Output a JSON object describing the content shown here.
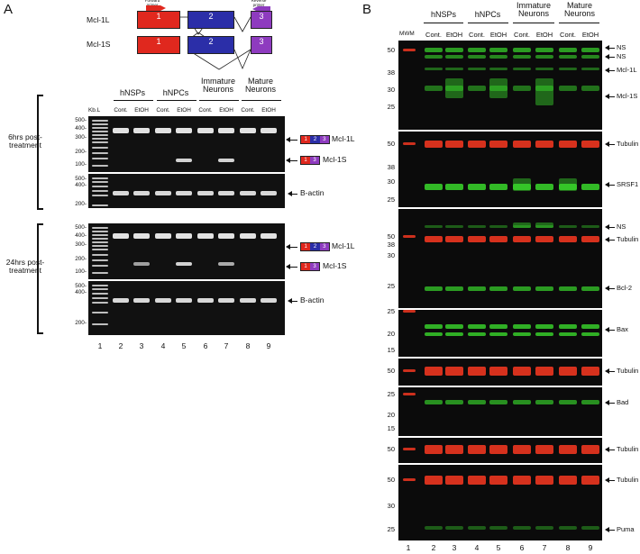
{
  "panel_a": {
    "letter": "A",
    "gene_diagram": {
      "isoforms": [
        {
          "label": "Mcl-1L",
          "exons": [
            "1",
            "2",
            "3"
          ]
        },
        {
          "label": "Mcl-1S",
          "exons": [
            "1",
            "2",
            "3"
          ]
        }
      ],
      "forward_primer": "Forward primer",
      "reverse_primer": "Reverse primer"
    },
    "groups": [
      "hNSPs",
      "hNPCs",
      "Immature Neurons",
      "Mature Neurons"
    ],
    "conditions": [
      "Cont.",
      "EtOH"
    ],
    "ladder_label": "Kb.L",
    "timepoints": [
      {
        "label": "6hrs post-treatment",
        "gel_ticks": [
          "500-",
          "400-",
          "300-",
          "200-",
          "100-"
        ],
        "actin_ticks": [
          "500-",
          "400-",
          "200-"
        ]
      },
      {
        "label": "24hrs post-treatment",
        "gel_ticks": [
          "500-",
          "400-",
          "300-",
          "200-",
          "100-"
        ],
        "actin_ticks": [
          "500-",
          "400-",
          "200-"
        ]
      }
    ],
    "band_labels": {
      "long": "Mcl-1L",
      "short": "Mcl-1S",
      "actin": "B-actin"
    },
    "mini_exons": {
      "long": [
        "1",
        "2",
        "3"
      ],
      "short": [
        "1",
        "3"
      ]
    },
    "lanes": [
      "1",
      "2",
      "3",
      "4",
      "5",
      "6",
      "7",
      "8",
      "9"
    ]
  },
  "panel_b": {
    "letter": "B",
    "groups": [
      "hNSPs",
      "hNPCs",
      "Immature Neurons",
      "Mature Neurons"
    ],
    "conditions": [
      "Cont.",
      "EtOH"
    ],
    "marker_label": "MWM",
    "lanes": [
      "1",
      "2",
      "3",
      "4",
      "5",
      "6",
      "7",
      "8",
      "9"
    ],
    "strips": [
      {
        "ticks": [
          "50",
          "38",
          "30",
          "25"
        ],
        "labels": [
          "NS",
          "NS",
          "Mcl-1L",
          "Mcl-1S"
        ]
      },
      {
        "ticks": [
          "50",
          "38",
          "30",
          "25"
        ],
        "labels": [
          "Tubulin",
          "SRSF1"
        ]
      },
      {
        "ticks": [
          "50",
          "38",
          "30",
          "25"
        ],
        "labels": [
          "NS",
          "Tubulin",
          "Bcl-2"
        ]
      },
      {
        "ticks": [
          "25",
          "20",
          "15"
        ],
        "labels": [
          "Bax"
        ]
      },
      {
        "ticks": [
          "50"
        ],
        "labels": [
          "Tubulin"
        ]
      },
      {
        "ticks": [
          "25",
          "20",
          "15"
        ],
        "labels": [
          "Bad"
        ]
      },
      {
        "ticks": [
          "50"
        ],
        "labels": [
          "Tubulin"
        ]
      },
      {
        "ticks": [
          "50",
          "30",
          "25"
        ],
        "labels": [
          "Tubulin",
          "Puma"
        ]
      }
    ]
  },
  "colors": {
    "red_exon": "#e0281e",
    "blue_exon": "#2b2ea8",
    "purple_exon": "#8e3bbf",
    "green_band": "#39d82c",
    "red_band": "#e2341f"
  }
}
